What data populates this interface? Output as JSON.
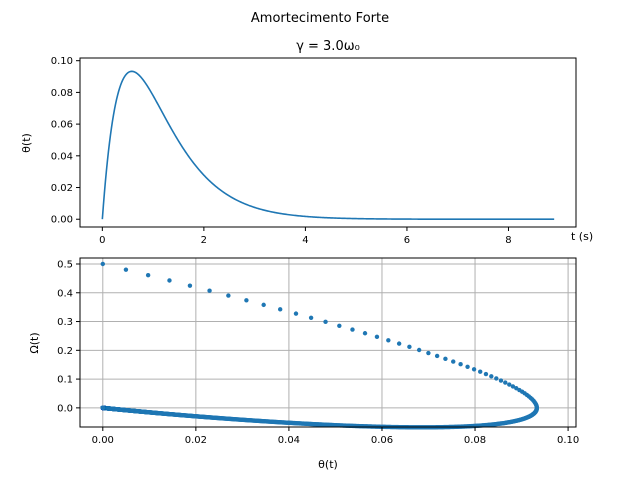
{
  "figure": {
    "suptitle": "Amortecimento Forte",
    "background": "#ffffff"
  },
  "chart_data": [
    {
      "type": "line",
      "title": "γ = 3.0ω₀",
      "xlabel": "t (s)",
      "ylabel": "θ(t)",
      "xlim": [
        -0.44,
        9.33
      ],
      "ylim": [
        -0.0049,
        0.1017
      ],
      "xticks": [
        0,
        2,
        4,
        6,
        8
      ],
      "xtick_labels": [
        "0",
        "2",
        "4",
        "6",
        "8"
      ],
      "yticks": [
        0.0,
        0.02,
        0.04,
        0.06,
        0.08,
        0.1
      ],
      "ytick_labels": [
        "0.00",
        "0.02",
        "0.04",
        "0.06",
        "0.08",
        "0.10"
      ],
      "grid": false,
      "series": [
        {
          "color": "#1f77b4",
          "x": [
            0,
            0.05,
            0.1,
            0.15,
            0.2,
            0.3,
            0.4,
            0.5,
            0.6,
            0.7,
            0.8,
            0.9,
            1.0,
            1.2,
            1.4,
            1.6,
            1.8,
            2.0,
            2.5,
            3.0,
            3.5,
            4.0,
            4.5,
            5.0,
            5.5,
            6.0,
            6.5,
            7.0,
            7.5,
            8.0,
            8.5,
            8.9
          ],
          "y": [
            0.0,
            0.0221,
            0.0393,
            0.0525,
            0.0625,
            0.0768,
            0.0857,
            0.0909,
            0.0934,
            0.0939,
            0.093,
            0.091,
            0.0885,
            0.0825,
            0.0761,
            0.0699,
            0.064,
            0.0586,
            0.0472,
            0.038,
            0.0306,
            0.0246,
            0.0198,
            0.0159,
            0.0128,
            0.0103,
            0.0083,
            0.0067,
            0.0054,
            0.0043,
            0.0035,
            0.003
          ]
        }
      ]
    },
    {
      "type": "scatter",
      "xlabel": "θ(t)",
      "ylabel": "Ω(t)",
      "xlim": [
        -0.0049,
        0.1017
      ],
      "ylim": [
        -0.0665,
        0.5208
      ],
      "xticks": [
        0.0,
        0.02,
        0.04,
        0.06,
        0.08,
        0.1
      ],
      "xtick_labels": [
        "0.00",
        "0.02",
        "0.04",
        "0.06",
        "0.08",
        "0.10"
      ],
      "yticks": [
        0.0,
        0.1,
        0.2,
        0.3,
        0.4,
        0.5
      ],
      "ytick_labels": [
        "0.0",
        "0.1",
        "0.2",
        "0.3",
        "0.4",
        "0.5"
      ],
      "grid": true,
      "series": [
        {
          "color": "#1f77b4",
          "generator": {
            "model": "critically damped oscillator θ(t) = θ0·t·exp(-t/τ) sampled over t",
            "t_start": 0,
            "t_end": 8.9,
            "dt": 0.01,
            "omega0": 0.5,
            "tau": 0.5774,
            "theta_scale": 1.0
          },
          "x": [
            0.0,
            0.0045,
            0.0087,
            0.0126,
            0.0163,
            0.0198,
            0.0261,
            0.0317,
            0.0366,
            0.0409,
            0.048,
            0.0535,
            0.0578,
            0.0612,
            0.0664,
            0.07,
            0.0726,
            0.0744,
            0.077,
            0.079,
            0.082,
            0.0845,
            0.087,
            0.0895,
            0.092,
            0.094,
            0.096,
            0.097,
            0.0969,
            0.096,
            0.094,
            0.09,
            0.085,
            0.08,
            0.07,
            0.06,
            0.05,
            0.04,
            0.03,
            0.02,
            0.015,
            0.01,
            0.005,
            0.003,
            0.0015
          ],
          "y": [
            0.5,
            0.482,
            0.464,
            0.447,
            0.43,
            0.414,
            0.397,
            0.383,
            0.368,
            0.353,
            0.338,
            0.325,
            0.312,
            0.3,
            0.287,
            0.275,
            0.262,
            0.25,
            0.235,
            0.222,
            0.2,
            0.175,
            0.15,
            0.12,
            0.09,
            0.06,
            0.035,
            0.01,
            -0.002,
            -0.015,
            -0.025,
            -0.032,
            -0.035,
            -0.037,
            -0.035,
            -0.033,
            -0.03,
            -0.026,
            -0.022,
            -0.017,
            -0.014,
            -0.011,
            -0.007,
            -0.005,
            -0.003
          ]
        }
      ]
    }
  ]
}
